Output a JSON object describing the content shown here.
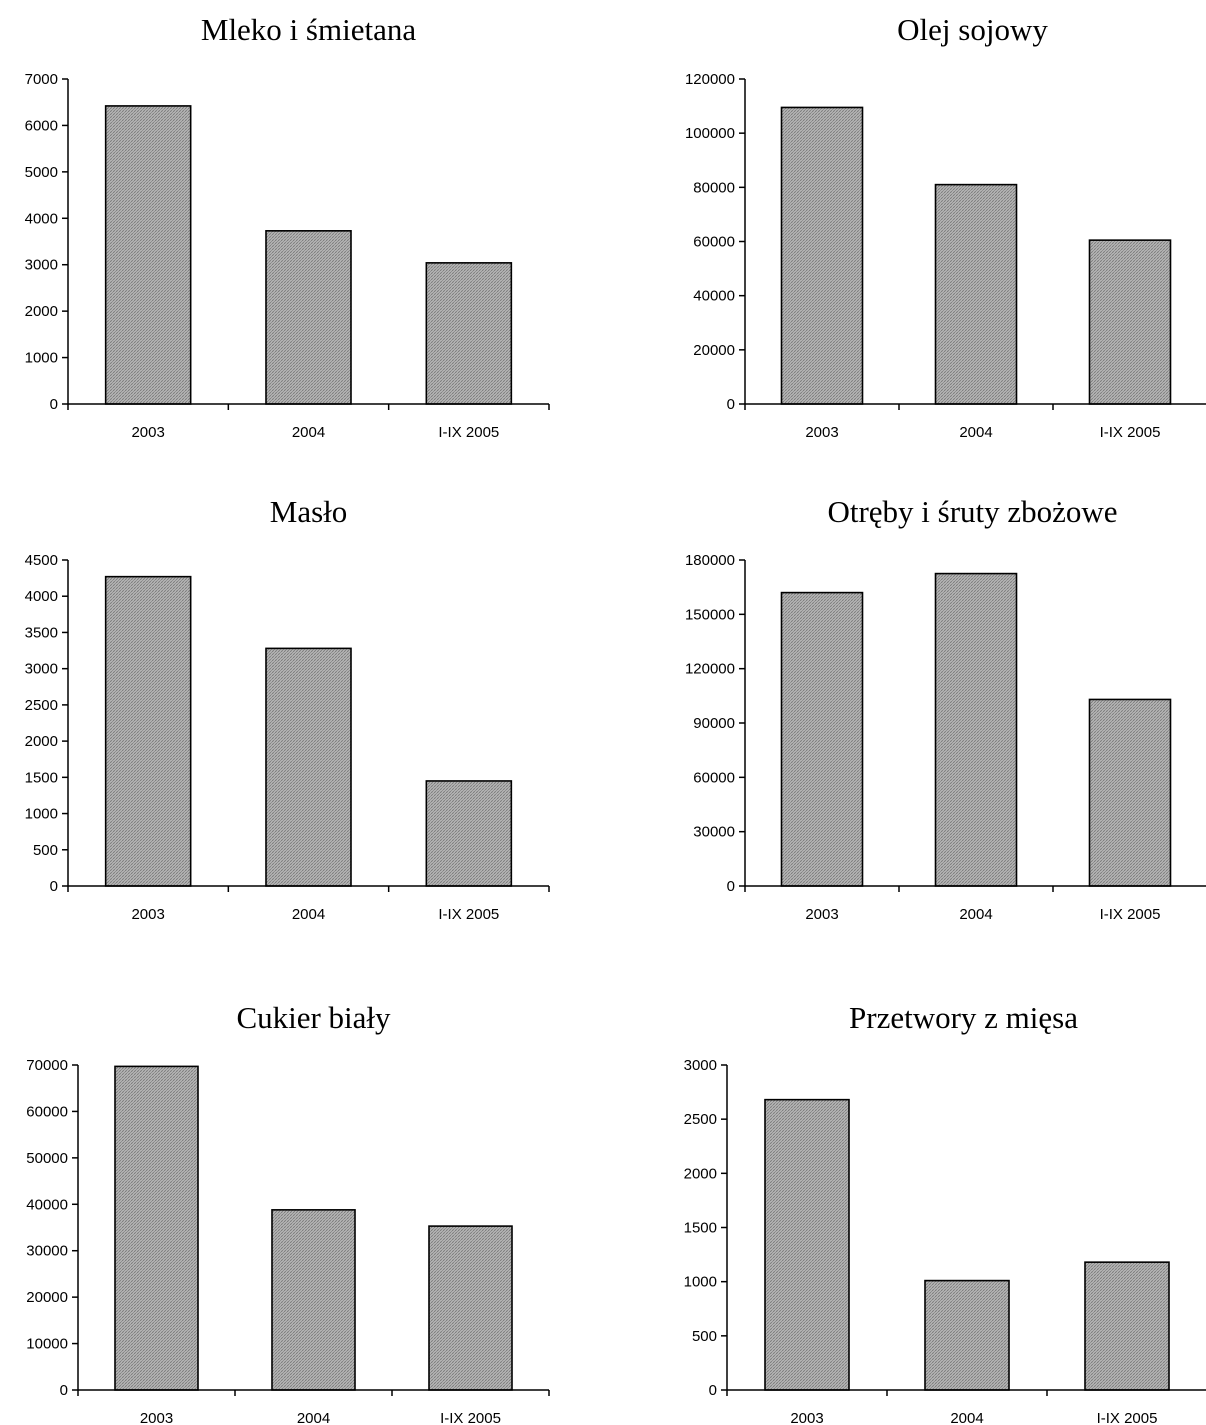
{
  "chart_data": [
    {
      "type": "bar",
      "title": "Mleko i śmietana",
      "categories": [
        "2003",
        "2004",
        "I-IX 2005"
      ],
      "values": [
        6420,
        3730,
        3040
      ],
      "ylim": [
        0,
        7000
      ],
      "yticks": [
        0,
        1000,
        2000,
        3000,
        4000,
        5000,
        6000,
        7000
      ],
      "grid": false,
      "legend": "none"
    },
    {
      "type": "bar",
      "title": "Olej sojowy",
      "categories": [
        "2003",
        "2004",
        "I-IX 2005"
      ],
      "values": [
        109500,
        81000,
        60500
      ],
      "ylim": [
        0,
        120000
      ],
      "yticks": [
        0,
        20000,
        40000,
        60000,
        80000,
        100000,
        120000
      ],
      "grid": false,
      "legend": "none"
    },
    {
      "type": "bar",
      "title": "Masło",
      "categories": [
        "2003",
        "2004",
        "I-IX 2005"
      ],
      "values": [
        4270,
        3280,
        1450
      ],
      "ylim": [
        0,
        4500
      ],
      "yticks": [
        0,
        500,
        1000,
        1500,
        2000,
        2500,
        3000,
        3500,
        4000,
        4500
      ],
      "grid": false,
      "legend": "none"
    },
    {
      "type": "bar",
      "title": "Otręby i śruty zbożowe",
      "categories": [
        "2003",
        "2004",
        "I-IX 2005"
      ],
      "values": [
        162000,
        172500,
        103000
      ],
      "ylim": [
        0,
        180000
      ],
      "yticks": [
        0,
        30000,
        60000,
        90000,
        120000,
        150000,
        180000
      ],
      "grid": false,
      "legend": "none"
    },
    {
      "type": "bar",
      "title": "Cukier biały",
      "categories": [
        "2003",
        "2004",
        "I-IX 2005"
      ],
      "values": [
        69700,
        38800,
        35300
      ],
      "ylim": [
        0,
        70000
      ],
      "yticks": [
        0,
        10000,
        20000,
        30000,
        40000,
        50000,
        60000,
        70000
      ],
      "grid": false,
      "legend": "none"
    },
    {
      "type": "bar",
      "title": "Przetwory z mięsa",
      "categories": [
        "2003",
        "2004",
        "I-IX 2005"
      ],
      "values": [
        2680,
        1010,
        1180
      ],
      "ylim": [
        0,
        3000
      ],
      "yticks": [
        0,
        500,
        1000,
        1500,
        2000,
        2500,
        3000
      ],
      "grid": false,
      "legend": "none"
    }
  ]
}
